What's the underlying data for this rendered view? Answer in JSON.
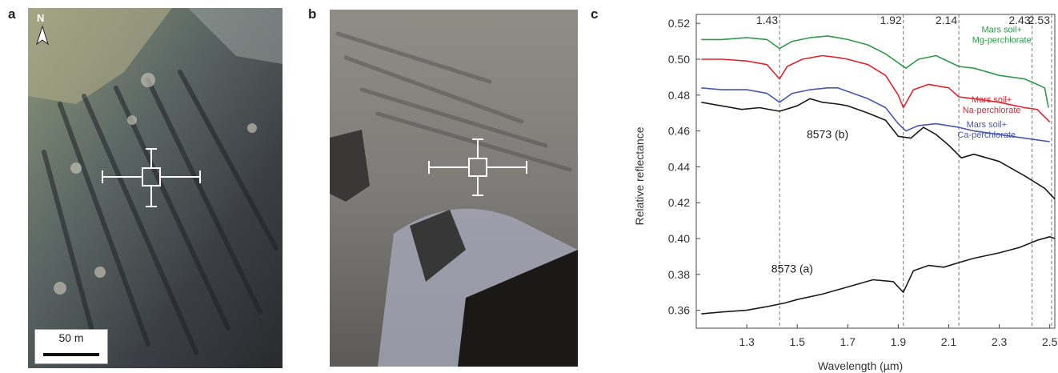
{
  "panels": {
    "a": "a",
    "b": "b",
    "c": "c"
  },
  "panel_a": {
    "north_label": "N",
    "scale_label": "50 m"
  },
  "chart_data": {
    "type": "line",
    "xlabel": "Wavelength (µm)",
    "ylabel": "Relative reflectance",
    "xlim": [
      1.1,
      2.52
    ],
    "ylim": [
      0.35,
      0.525
    ],
    "xticks": [
      "1.3",
      "1.5",
      "1.7",
      "1.9",
      "2.1",
      "2.3",
      "2.5"
    ],
    "yticks": [
      "0.36",
      "0.38",
      "0.40",
      "0.42",
      "0.44",
      "0.46",
      "0.48",
      "0.50",
      "0.52"
    ],
    "band_lines": [
      1.43,
      1.92,
      2.14,
      2.43,
      2.53
    ],
    "band_labels": [
      "1.43",
      "1.92",
      "2.14",
      "2.43",
      "2.53"
    ],
    "colors": {
      "mg": "#2e9a4a",
      "na": "#e0242f",
      "ca": "#4756b0",
      "obs": "#1a1a1a"
    },
    "series": [
      {
        "name": "Mars soil + Mg-perchlorate",
        "label_lines": [
          "Mars soil+",
          "Mg-perchlorate"
        ],
        "color_key": "mg",
        "x": [
          1.12,
          1.2,
          1.3,
          1.38,
          1.43,
          1.48,
          1.55,
          1.62,
          1.66,
          1.7,
          1.78,
          1.85,
          1.9,
          1.93,
          1.98,
          2.05,
          2.14,
          2.2,
          2.3,
          2.4,
          2.45,
          2.48,
          2.495
        ],
        "y": [
          0.511,
          0.511,
          0.512,
          0.511,
          0.506,
          0.51,
          0.512,
          0.513,
          0.512,
          0.511,
          0.508,
          0.503,
          0.498,
          0.495,
          0.5,
          0.502,
          0.496,
          0.495,
          0.491,
          0.489,
          0.486,
          0.484,
          0.473
        ]
      },
      {
        "name": "Mars soil + Na-perchlorate",
        "label_lines": [
          "Mars soil+",
          "Na-perchlorate"
        ],
        "color_key": "na",
        "x": [
          1.12,
          1.2,
          1.3,
          1.38,
          1.43,
          1.46,
          1.52,
          1.6,
          1.66,
          1.7,
          1.78,
          1.85,
          1.9,
          1.92,
          1.96,
          2.02,
          2.1,
          2.14,
          2.2,
          2.3,
          2.4,
          2.45,
          2.5
        ],
        "y": [
          0.5,
          0.5,
          0.499,
          0.497,
          0.489,
          0.496,
          0.5,
          0.502,
          0.501,
          0.5,
          0.497,
          0.491,
          0.48,
          0.473,
          0.483,
          0.486,
          0.484,
          0.479,
          0.478,
          0.476,
          0.473,
          0.472,
          0.465
        ]
      },
      {
        "name": "Mars soil + Ca-perchlorate",
        "label_lines": [
          "Mars soil+",
          "Ca-perchlorate"
        ],
        "color_key": "ca",
        "x": [
          1.12,
          1.2,
          1.3,
          1.38,
          1.43,
          1.48,
          1.55,
          1.62,
          1.66,
          1.7,
          1.78,
          1.85,
          1.9,
          1.93,
          1.98,
          2.05,
          2.14,
          2.2,
          2.3,
          2.4,
          2.45,
          2.5
        ],
        "y": [
          0.484,
          0.483,
          0.483,
          0.481,
          0.476,
          0.481,
          0.483,
          0.484,
          0.484,
          0.482,
          0.478,
          0.473,
          0.464,
          0.46,
          0.463,
          0.464,
          0.462,
          0.46,
          0.458,
          0.456,
          0.455,
          0.454
        ]
      },
      {
        "name": "8573 (b)",
        "label_lines": [
          "8573 (b)"
        ],
        "color_key": "obs",
        "x": [
          1.12,
          1.2,
          1.28,
          1.35,
          1.43,
          1.5,
          1.55,
          1.6,
          1.66,
          1.7,
          1.78,
          1.85,
          1.9,
          1.95,
          2.0,
          2.05,
          2.1,
          2.15,
          2.2,
          2.3,
          2.4,
          2.48,
          2.52
        ],
        "y": [
          0.476,
          0.474,
          0.472,
          0.473,
          0.471,
          0.474,
          0.478,
          0.476,
          0.475,
          0.474,
          0.47,
          0.466,
          0.457,
          0.456,
          0.462,
          0.458,
          0.452,
          0.445,
          0.447,
          0.443,
          0.435,
          0.428,
          0.422
        ]
      },
      {
        "name": "8573 (a)",
        "label_lines": [
          "8573 (a)"
        ],
        "color_key": "obs",
        "x": [
          1.12,
          1.2,
          1.3,
          1.38,
          1.45,
          1.5,
          1.6,
          1.7,
          1.8,
          1.88,
          1.92,
          1.96,
          2.02,
          2.08,
          2.15,
          2.2,
          2.3,
          2.38,
          2.45,
          2.5,
          2.52
        ],
        "y": [
          0.358,
          0.359,
          0.36,
          0.362,
          0.364,
          0.366,
          0.369,
          0.373,
          0.377,
          0.376,
          0.37,
          0.382,
          0.385,
          0.384,
          0.387,
          0.389,
          0.392,
          0.395,
          0.399,
          0.401,
          0.4
        ]
      }
    ]
  }
}
